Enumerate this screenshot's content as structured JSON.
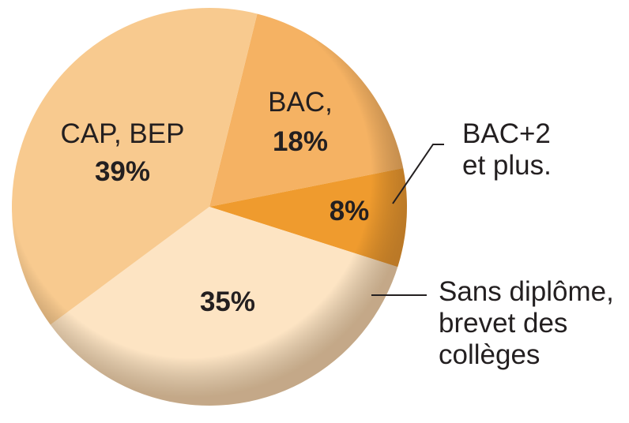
{
  "chart_data": {
    "type": "pie",
    "categories": [
      "BAC,",
      "BAC+2\net plus.",
      "Sans diplôme,\nbrevet des\ncollèges",
      "CAP, BEP"
    ],
    "values": [
      18,
      8,
      35,
      39
    ],
    "value_labels": [
      "18%",
      "8%",
      "35%",
      "39%"
    ],
    "colors": [
      "#f5b263",
      "#ef9b2e",
      "#fde4c3",
      "#f8ca8f"
    ]
  }
}
